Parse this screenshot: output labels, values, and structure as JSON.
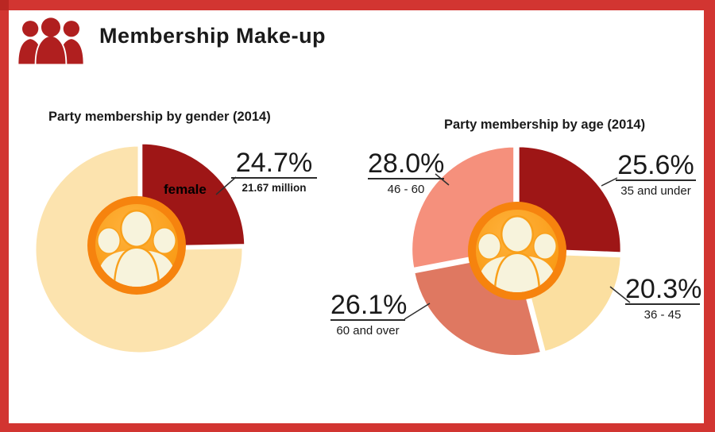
{
  "header": {
    "title": "Membership Make-up",
    "icon": "people-group-icon"
  },
  "gender_chart": {
    "title": "Party membership by gender (2014)",
    "slice_label": "female",
    "callout_pct": "24.7%",
    "callout_sub": "21.67 million"
  },
  "age_chart": {
    "title": "Party membership by age (2014)",
    "callouts": [
      {
        "pct": "28.0%",
        "sub": "46 - 60"
      },
      {
        "pct": "25.6%",
        "sub": "35 and under"
      },
      {
        "pct": "26.1%",
        "sub": "60 and over"
      },
      {
        "pct": "20.3%",
        "sub": "36 - 45"
      }
    ]
  },
  "colors": {
    "frame_red": "#D23531",
    "header_icon_red": "#B01F1F",
    "dark_red": "#9E1616",
    "cream_gender": "#FCE3AE",
    "cream_age": "#FBDFA0",
    "terracotta": "#DF7861",
    "salmon": "#F5907C",
    "badge_ring": "#F6830E",
    "badge_inner": "#F9A01B",
    "badge_people": "#F7F3DC",
    "leader_line": "#2F2F2F"
  },
  "chart_data": [
    {
      "type": "pie",
      "title": "Party membership by gender (2014)",
      "labels": [
        "female",
        ""
      ],
      "values": [
        24.7,
        75.3
      ],
      "colors": [
        "#9E1616",
        "#FCE3AE"
      ],
      "annotations": [
        "female slice callout: 24.7% — 21.67 million"
      ],
      "start_angle_deg": 0,
      "direction": "clockwise",
      "legend_position": "none"
    },
    {
      "type": "pie",
      "title": "Party membership by age (2014)",
      "labels": [
        "35 and under",
        "36 - 45",
        "60 and over",
        "46 - 60"
      ],
      "values": [
        25.6,
        20.3,
        26.1,
        28.0
      ],
      "colors": [
        "#9E1616",
        "#FBDFA0",
        "#DF7861",
        "#F5907C"
      ],
      "annotations": [
        "25.6% — 35 and under",
        "20.3% — 36 - 45",
        "26.1% — 60 and over",
        "28.0% — 46 - 60"
      ],
      "start_angle_deg": 0,
      "direction": "clockwise",
      "legend_position": "none"
    }
  ]
}
